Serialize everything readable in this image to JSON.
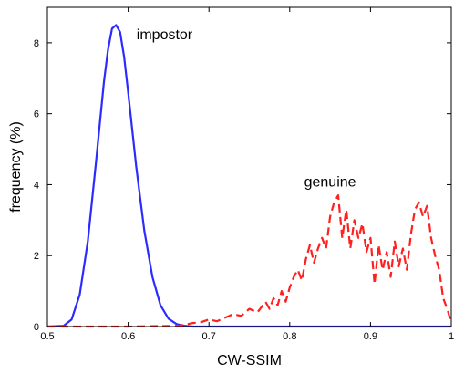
{
  "chart_data": {
    "type": "line",
    "title": "",
    "xlabel": "CW-SSIM",
    "ylabel": "frequency (%)",
    "xlim": [
      0.5,
      1.0
    ],
    "ylim": [
      0,
      9
    ],
    "x_ticks": [
      {
        "value": 0.5,
        "label": "0.5"
      },
      {
        "value": 0.6,
        "label": "0.6"
      },
      {
        "value": 0.7,
        "label": "0.7"
      },
      {
        "value": 0.8,
        "label": "0.8"
      },
      {
        "value": 0.9,
        "label": "0.9"
      },
      {
        "value": 1.0,
        "label": "1"
      }
    ],
    "y_ticks": [
      {
        "value": 0,
        "label": "0"
      },
      {
        "value": 2,
        "label": "2"
      },
      {
        "value": 4,
        "label": "4"
      },
      {
        "value": 6,
        "label": "6"
      },
      {
        "value": 8,
        "label": "8"
      }
    ],
    "grid": false,
    "series": [
      {
        "name": "",
        "color": "#2b2bff",
        "style": "solid",
        "x": [
          0.5,
          0.52,
          0.53,
          0.54,
          0.55,
          0.56,
          0.57,
          0.575,
          0.58,
          0.585,
          0.59,
          0.595,
          0.6,
          0.61,
          0.62,
          0.63,
          0.64,
          0.65,
          0.66,
          0.67,
          0.68,
          0.7,
          0.75,
          0.8,
          0.85,
          0.9,
          0.95,
          1.0
        ],
        "y": [
          0,
          0.02,
          0.2,
          0.9,
          2.4,
          4.6,
          6.9,
          7.8,
          8.4,
          8.5,
          8.3,
          7.6,
          6.6,
          4.5,
          2.7,
          1.4,
          0.6,
          0.22,
          0.07,
          0.02,
          0,
          0,
          0,
          0,
          0,
          0,
          0,
          0
        ]
      },
      {
        "name": "",
        "color": "#ff2020",
        "style": "dashed",
        "x": [
          0.5,
          0.6,
          0.66,
          0.67,
          0.68,
          0.69,
          0.7,
          0.71,
          0.72,
          0.73,
          0.74,
          0.75,
          0.76,
          0.77,
          0.775,
          0.78,
          0.785,
          0.79,
          0.795,
          0.8,
          0.805,
          0.81,
          0.815,
          0.82,
          0.825,
          0.83,
          0.835,
          0.84,
          0.845,
          0.85,
          0.855,
          0.86,
          0.865,
          0.87,
          0.875,
          0.88,
          0.885,
          0.89,
          0.895,
          0.9,
          0.905,
          0.91,
          0.915,
          0.92,
          0.925,
          0.93,
          0.935,
          0.94,
          0.945,
          0.95,
          0.955,
          0.96,
          0.965,
          0.97,
          0.975,
          0.98,
          0.985,
          0.99,
          0.995,
          1.0
        ],
        "y": [
          0,
          0,
          0.02,
          0.05,
          0.1,
          0.12,
          0.2,
          0.15,
          0.25,
          0.35,
          0.3,
          0.5,
          0.4,
          0.7,
          0.5,
          0.8,
          0.6,
          1.0,
          0.7,
          1.1,
          1.4,
          1.6,
          1.3,
          1.9,
          2.3,
          1.8,
          2.2,
          2.5,
          2.2,
          3.1,
          3.5,
          3.7,
          2.5,
          3.3,
          2.2,
          3.0,
          2.5,
          2.9,
          2.1,
          2.5,
          1.2,
          2.3,
          1.6,
          2.1,
          1.4,
          2.4,
          1.7,
          2.2,
          1.6,
          2.6,
          3.3,
          3.5,
          3.1,
          3.4,
          2.5,
          2.0,
          1.6,
          0.8,
          0.5,
          0.1
        ]
      }
    ],
    "annotations": [
      {
        "text": "impostor",
        "x": 0.645,
        "y": 8.1
      },
      {
        "text": "genuine",
        "x": 0.85,
        "y": 3.95
      }
    ]
  }
}
